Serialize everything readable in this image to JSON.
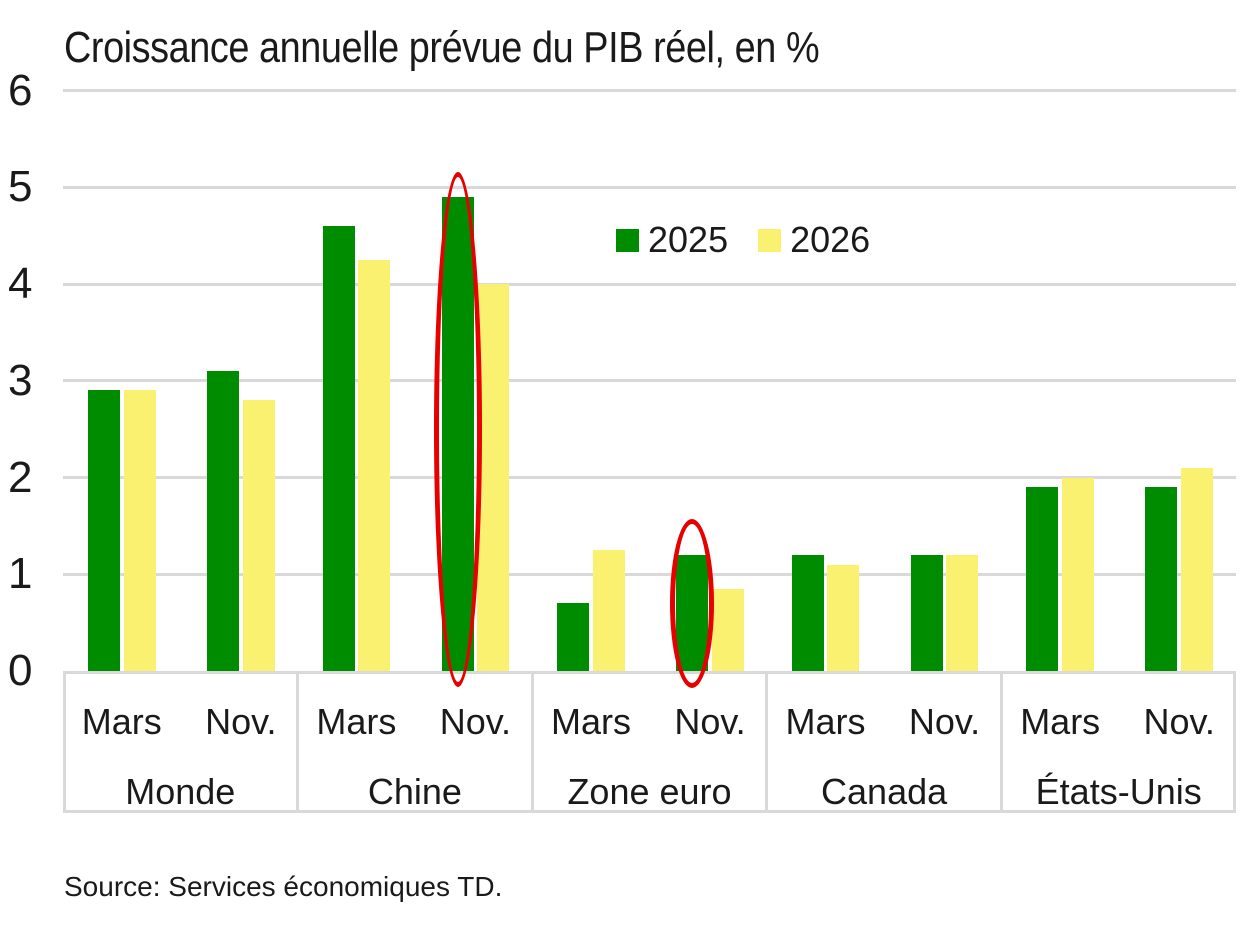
{
  "title": "Croissance annuelle prévue du PIB réel, en %",
  "source": "Source: Services économiques TD.",
  "colors": {
    "series_2025": "#008c00",
    "series_2026": "#faf170",
    "highlight": "#e60000",
    "gridline": "#d9d9d9",
    "text": "#1a1a1a",
    "background": "#ffffff"
  },
  "chart_data": {
    "type": "bar",
    "title": "Croissance annuelle prévue du PIB réel, en %",
    "xlabel": "",
    "ylabel": "",
    "ylim": [
      0,
      6
    ],
    "yticks": [
      0,
      1,
      2,
      3,
      4,
      5,
      6
    ],
    "grid": "horizontal",
    "legend_position": "inside-top-center",
    "series": [
      {
        "name": "2025",
        "color": "#008c00"
      },
      {
        "name": "2026",
        "color": "#faf170"
      }
    ],
    "groups": [
      {
        "label": "Monde",
        "periods": [
          {
            "label": "Mars",
            "values": [
              2.9,
              2.9
            ]
          },
          {
            "label": "Nov.",
            "values": [
              3.1,
              2.8
            ]
          }
        ]
      },
      {
        "label": "Chine",
        "periods": [
          {
            "label": "Mars",
            "values": [
              4.6,
              4.25
            ]
          },
          {
            "label": "Nov.",
            "values": [
              4.9,
              4.0
            ]
          }
        ]
      },
      {
        "label": "Zone euro",
        "periods": [
          {
            "label": "Mars",
            "values": [
              0.7,
              1.25
            ]
          },
          {
            "label": "Nov.",
            "values": [
              1.2,
              0.85
            ]
          }
        ]
      },
      {
        "label": "Canada",
        "periods": [
          {
            "label": "Mars",
            "values": [
              1.2,
              1.1
            ]
          },
          {
            "label": "Nov.",
            "values": [
              1.2,
              1.2
            ]
          }
        ]
      },
      {
        "label": "États-Unis",
        "periods": [
          {
            "label": "Mars",
            "values": [
              1.9,
              2.0
            ]
          },
          {
            "label": "Nov.",
            "values": [
              1.9,
              2.1
            ]
          }
        ]
      }
    ],
    "annotations": [
      {
        "target": "Chine Nov. 2025",
        "shape": "red-ellipse"
      },
      {
        "target": "Zone euro Nov. 2025",
        "shape": "red-ellipse"
      }
    ]
  }
}
